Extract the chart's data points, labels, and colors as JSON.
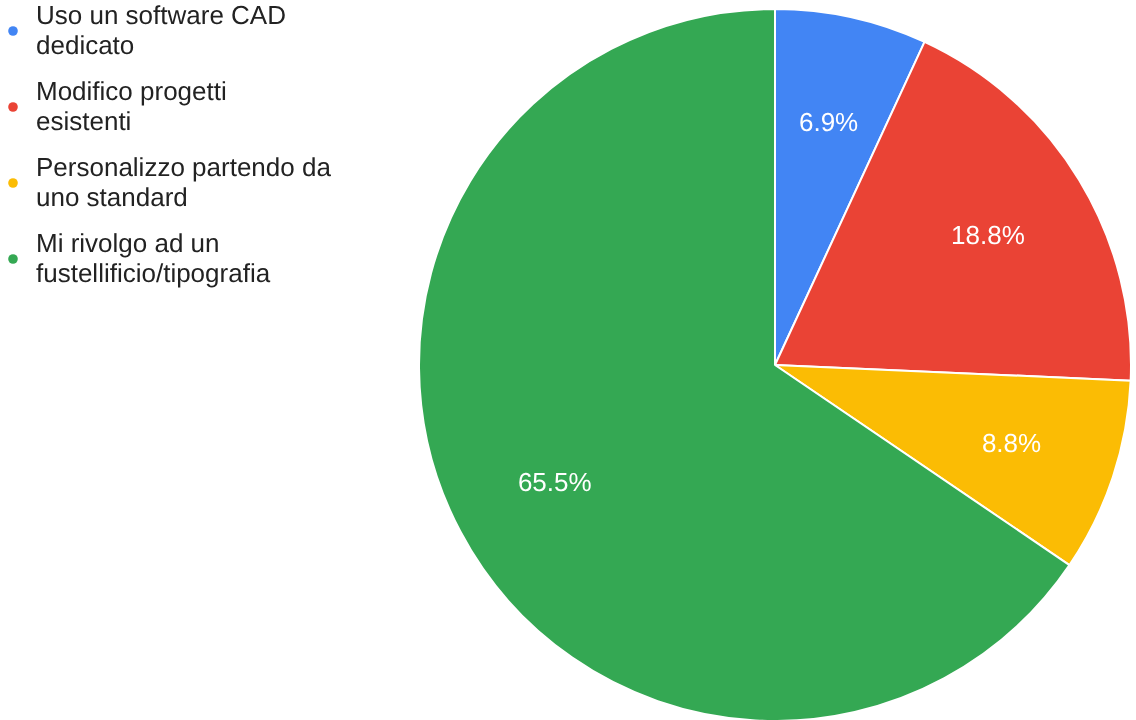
{
  "chart_data": {
    "type": "pie",
    "categories": [
      "Uso un software CAD dedicato",
      "Modifico progetti esistenti",
      "Personalizzo partendo da uno standard",
      "Mi rivolgo ad un fustellificio/tipografia"
    ],
    "values": [
      6.9,
      18.8,
      8.8,
      65.5
    ],
    "colors": [
      "#4285f4",
      "#ea4335",
      "#fbbc04",
      "#34a853"
    ],
    "value_labels": [
      "6.9%",
      "18.8%",
      "8.8%",
      "65.5%"
    ],
    "legend": "top left"
  }
}
